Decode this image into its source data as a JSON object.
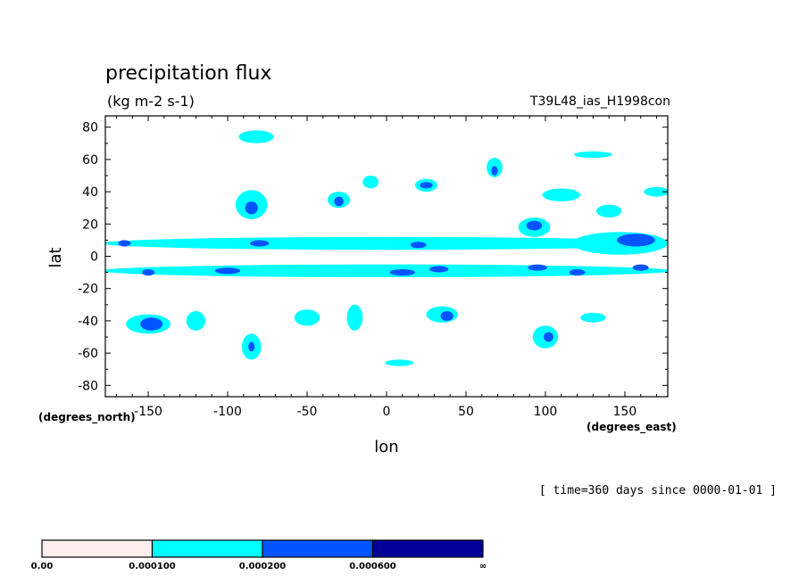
{
  "chart_data": {
    "type": "heatmap",
    "title": "precipitation flux",
    "subtitle": "(kg m-2 s-1)",
    "run_label": "T39L48_ias_H1998con",
    "xlabel": "lon",
    "ylabel": "lat",
    "x_units": "(degrees_north)",
    "x_units_right": "(degrees_east)",
    "time_note": "[ time=360 days since 0000-01-01 ]",
    "xlim": [
      -177,
      177
    ],
    "ylim": [
      -87,
      87
    ],
    "x_ticks": [
      -150,
      -100,
      -50,
      0,
      50,
      100,
      150
    ],
    "x_tick_labels": [
      "-150",
      "-100",
      "-50",
      "0",
      "50",
      "100",
      "150"
    ],
    "y_ticks": [
      80,
      60,
      40,
      20,
      0,
      -20,
      -40,
      -60,
      -80
    ],
    "y_tick_labels": [
      "80",
      "60",
      "40",
      "20",
      "0",
      "-20",
      "-40",
      "-60",
      "-80"
    ],
    "levels": [
      {
        "label": "0.00",
        "color": "#ffeeee"
      },
      {
        "label": "0.000100",
        "color": "#00ffff"
      },
      {
        "label": "0.000200",
        "color": "#0055ff"
      },
      {
        "label": "0.000600",
        "color": "#000099"
      },
      {
        "label": "∞",
        "color": ""
      }
    ],
    "regions": [
      {
        "lon": 0,
        "lat": 8,
        "rlon": 180,
        "rlat": 4,
        "level": 1
      },
      {
        "lon": 0,
        "lat": -9,
        "rlon": 180,
        "rlat": 4,
        "level": 1
      },
      {
        "lon": -82,
        "lat": 74,
        "rlon": 11,
        "rlat": 4,
        "level": 1
      },
      {
        "lon": 147,
        "lat": 8,
        "rlon": 30,
        "rlat": 7,
        "level": 1
      },
      {
        "lon": 157,
        "lat": 10,
        "rlon": 12,
        "rlat": 4,
        "level": 2
      },
      {
        "lon": 93,
        "lat": 18,
        "rlon": 10,
        "rlat": 6,
        "level": 1
      },
      {
        "lon": 93,
        "lat": 19,
        "rlon": 5,
        "rlat": 3,
        "level": 2
      },
      {
        "lon": 68,
        "lat": 55,
        "rlon": 5,
        "rlat": 6,
        "level": 1
      },
      {
        "lon": 68,
        "lat": 53,
        "rlon": 2,
        "rlat": 3,
        "level": 2
      },
      {
        "lon": 25,
        "lat": 44,
        "rlon": 7,
        "rlat": 4,
        "level": 1
      },
      {
        "lon": 25,
        "lat": 44,
        "rlon": 4,
        "rlat": 2,
        "level": 2
      },
      {
        "lon": -30,
        "lat": 35,
        "rlon": 7,
        "rlat": 5,
        "level": 1
      },
      {
        "lon": -30,
        "lat": 34,
        "rlon": 3,
        "rlat": 3,
        "level": 2
      },
      {
        "lon": -85,
        "lat": 32,
        "rlon": 10,
        "rlat": 9,
        "level": 1
      },
      {
        "lon": -85,
        "lat": 30,
        "rlon": 4,
        "rlat": 4,
        "level": 2
      },
      {
        "lon": -150,
        "lat": -42,
        "rlon": 14,
        "rlat": 6,
        "level": 1
      },
      {
        "lon": -148,
        "lat": -42,
        "rlon": 7,
        "rlat": 4,
        "level": 2
      },
      {
        "lon": 35,
        "lat": -36,
        "rlon": 10,
        "rlat": 5,
        "level": 1
      },
      {
        "lon": 38,
        "lat": -37,
        "rlon": 4,
        "rlat": 3,
        "level": 2
      },
      {
        "lon": 100,
        "lat": -50,
        "rlon": 8,
        "rlat": 7,
        "level": 1
      },
      {
        "lon": 102,
        "lat": -50,
        "rlon": 3,
        "rlat": 3,
        "level": 2
      },
      {
        "lon": -85,
        "lat": -56,
        "rlon": 6,
        "rlat": 8,
        "level": 1
      },
      {
        "lon": -85,
        "lat": -56,
        "rlon": 2,
        "rlat": 3,
        "level": 2
      },
      {
        "lon": 8,
        "lat": -66,
        "rlon": 9,
        "rlat": 2,
        "level": 1
      },
      {
        "lon": 130,
        "lat": 63,
        "rlon": 12,
        "rlat": 2,
        "level": 1
      },
      {
        "lon": 110,
        "lat": 38,
        "rlon": 12,
        "rlat": 4,
        "level": 1
      },
      {
        "lon": 140,
        "lat": 28,
        "rlon": 8,
        "rlat": 4,
        "level": 1
      },
      {
        "lon": 170,
        "lat": 40,
        "rlon": 8,
        "rlat": 3,
        "level": 1
      },
      {
        "lon": -50,
        "lat": -38,
        "rlon": 8,
        "rlat": 5,
        "level": 1
      },
      {
        "lon": -20,
        "lat": -38,
        "rlon": 5,
        "rlat": 8,
        "level": 1
      },
      {
        "lon": 130,
        "lat": -38,
        "rlon": 8,
        "rlat": 3,
        "level": 1
      },
      {
        "lon": -120,
        "lat": -40,
        "rlon": 6,
        "rlat": 6,
        "level": 1
      },
      {
        "lon": -10,
        "lat": 46,
        "rlon": 5,
        "rlat": 4,
        "level": 1
      },
      {
        "lon": -165,
        "lat": 8,
        "rlon": 4,
        "rlat": 2,
        "level": 2
      },
      {
        "lon": -80,
        "lat": 8,
        "rlon": 6,
        "rlat": 2,
        "level": 2
      },
      {
        "lon": 20,
        "lat": 7,
        "rlon": 5,
        "rlat": 2,
        "level": 2
      },
      {
        "lon": 10,
        "lat": -10,
        "rlon": 8,
        "rlat": 2,
        "level": 2
      },
      {
        "lon": 33,
        "lat": -8,
        "rlon": 6,
        "rlat": 2,
        "level": 2
      },
      {
        "lon": 95,
        "lat": -7,
        "rlon": 6,
        "rlat": 2,
        "level": 2
      },
      {
        "lon": 120,
        "lat": -10,
        "rlon": 5,
        "rlat": 2,
        "level": 2
      },
      {
        "lon": -100,
        "lat": -9,
        "rlon": 8,
        "rlat": 2,
        "level": 2
      },
      {
        "lon": -150,
        "lat": -10,
        "rlon": 4,
        "rlat": 2,
        "level": 2
      },
      {
        "lon": 160,
        "lat": -7,
        "rlon": 5,
        "rlat": 2,
        "level": 2
      }
    ]
  }
}
